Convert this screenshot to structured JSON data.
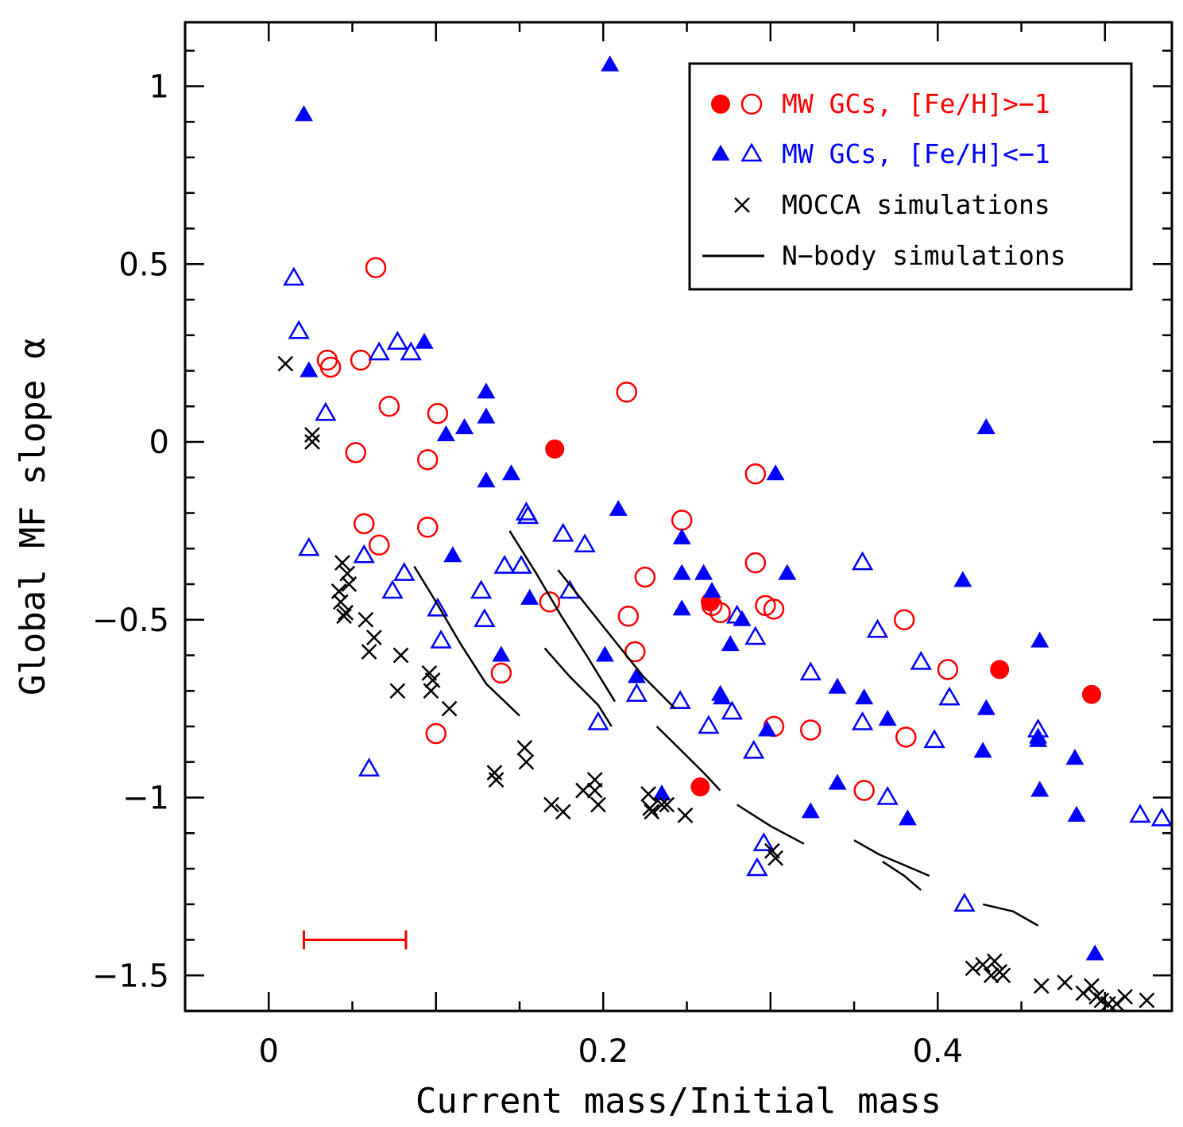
{
  "chart_data": {
    "type": "scatter",
    "xlabel": "Current mass/Initial mass",
    "ylabel": "Global MF slope α",
    "xlim": [
      -0.05,
      0.54
    ],
    "ylim": [
      -1.6,
      1.18
    ],
    "xticks": [
      0,
      0.2,
      0.4
    ],
    "xtick_labels": [
      "0",
      "0.2",
      "0.4"
    ],
    "yticks": [
      1,
      0.5,
      0,
      -0.5,
      -1,
      -1.5
    ],
    "ytick_labels": [
      "1",
      "0.5",
      "0",
      "−0.5",
      "−1",
      "−1.5"
    ],
    "legend_position": "top-right",
    "colors": {
      "red": "#ff0000",
      "blue": "#0000ff",
      "black": "#000000"
    },
    "legend": [
      {
        "label": "MW GCs, [Fe/H]>−1",
        "color": "#ff0000",
        "symbols": [
          "filled-circle",
          "open-circle"
        ]
      },
      {
        "label": "MW GCs, [Fe/H]<−1",
        "color": "#0000ff",
        "symbols": [
          "filled-triangle",
          "open-triangle"
        ]
      },
      {
        "label": "MOCCA simulations",
        "color": "#000000",
        "symbols": [
          "cross"
        ]
      },
      {
        "label": "N−body simulations",
        "color": "#000000",
        "symbols": [
          "line"
        ]
      }
    ],
    "series": [
      {
        "name": "MW GCs, [Fe/H]>−1",
        "marker": "filled-circle",
        "color": "#ff0000",
        "x": [
          0.171,
          0.264,
          0.258,
          0.437,
          0.492
        ],
        "y": [
          -0.02,
          -0.45,
          -0.97,
          -0.64,
          -0.71
        ]
      },
      {
        "name": "MW GCs, [Fe/H]>−1",
        "marker": "open-circle",
        "color": "#ff0000",
        "x": [
          0.064,
          0.035,
          0.037,
          0.055,
          0.072,
          0.101,
          0.095,
          0.052,
          0.057,
          0.066,
          0.095,
          0.1,
          0.139,
          0.168,
          0.214,
          0.215,
          0.219,
          0.225,
          0.247,
          0.265,
          0.27,
          0.291,
          0.291,
          0.297,
          0.302,
          0.302,
          0.324,
          0.356,
          0.38,
          0.381,
          0.406
        ],
        "y": [
          0.49,
          0.23,
          0.21,
          0.23,
          0.1,
          0.08,
          -0.05,
          -0.03,
          -0.23,
          -0.29,
          -0.24,
          -0.82,
          -0.65,
          -0.45,
          0.14,
          -0.49,
          -0.59,
          -0.38,
          -0.22,
          -0.46,
          -0.48,
          -0.09,
          -0.34,
          -0.46,
          -0.47,
          -0.8,
          -0.81,
          -0.98,
          -0.5,
          -0.83,
          -0.64
        ]
      },
      {
        "name": "MW GCs, [Fe/H]<−1",
        "marker": "filled-triangle",
        "color": "#0000ff",
        "x": [
          0.021,
          0.204,
          0.024,
          0.093,
          0.13,
          0.13,
          0.117,
          0.106,
          0.145,
          0.13,
          0.11,
          0.139,
          0.156,
          0.209,
          0.201,
          0.22,
          0.247,
          0.247,
          0.26,
          0.247,
          0.265,
          0.27,
          0.271,
          0.276,
          0.283,
          0.298,
          0.303,
          0.31,
          0.324,
          0.34,
          0.34,
          0.356,
          0.37,
          0.382,
          0.415,
          0.429,
          0.427,
          0.429,
          0.461,
          0.46,
          0.461,
          0.482,
          0.483,
          0.494,
          0.235,
          0.46
        ],
        "y": [
          0.92,
          1.06,
          0.2,
          0.28,
          0.14,
          0.07,
          0.04,
          0.02,
          -0.09,
          -0.11,
          -0.32,
          -0.6,
          -0.44,
          -0.19,
          -0.6,
          -0.66,
          -0.27,
          -0.37,
          -0.37,
          -0.47,
          -0.42,
          -0.71,
          -0.72,
          -0.57,
          -0.5,
          -0.81,
          -0.09,
          -0.37,
          -1.04,
          -0.69,
          -0.96,
          -0.72,
          -0.78,
          -1.06,
          -0.39,
          -0.75,
          -0.87,
          0.04,
          -0.56,
          -0.84,
          -0.98,
          -0.89,
          -1.05,
          -1.44,
          -0.99,
          -0.83
        ]
      },
      {
        "name": "MW GCs, [Fe/H]<−1",
        "marker": "open-triangle",
        "color": "#0000ff",
        "x": [
          0.015,
          0.018,
          0.034,
          0.024,
          0.066,
          0.077,
          0.085,
          0.057,
          0.081,
          0.074,
          0.06,
          0.101,
          0.103,
          0.127,
          0.129,
          0.141,
          0.154,
          0.155,
          0.151,
          0.176,
          0.18,
          0.189,
          0.197,
          0.22,
          0.246,
          0.263,
          0.277,
          0.28,
          0.291,
          0.29,
          0.296,
          0.292,
          0.324,
          0.355,
          0.355,
          0.364,
          0.37,
          0.39,
          0.398,
          0.407,
          0.416,
          0.46,
          0.521,
          0.534
        ],
        "y": [
          0.46,
          0.31,
          0.08,
          -0.3,
          0.25,
          0.28,
          0.25,
          -0.32,
          -0.37,
          -0.42,
          -0.92,
          -0.47,
          -0.56,
          -0.42,
          -0.5,
          -0.35,
          -0.2,
          -0.21,
          -0.35,
          -0.26,
          -0.42,
          -0.29,
          -0.79,
          -0.71,
          -0.73,
          -0.8,
          -0.76,
          -0.49,
          -0.55,
          -0.87,
          -1.13,
          -1.2,
          -0.65,
          -0.34,
          -0.79,
          -0.53,
          -1.0,
          -0.62,
          -0.84,
          -0.72,
          -1.3,
          -0.81,
          -1.05,
          -1.06
        ]
      },
      {
        "name": "MOCCA simulations",
        "marker": "cross",
        "color": "#000000",
        "x": [
          0.01,
          0.026,
          0.026,
          0.044,
          0.047,
          0.042,
          0.048,
          0.043,
          0.046,
          0.045,
          0.058,
          0.063,
          0.06,
          0.079,
          0.077,
          0.096,
          0.098,
          0.097,
          0.108,
          0.135,
          0.136,
          0.153,
          0.154,
          0.169,
          0.176,
          0.188,
          0.195,
          0.195,
          0.197,
          0.227,
          0.228,
          0.229,
          0.235,
          0.238,
          0.249,
          0.301,
          0.303,
          0.421,
          0.427,
          0.432,
          0.434,
          0.437,
          0.439,
          0.462,
          0.476,
          0.487,
          0.492,
          0.495,
          0.498,
          0.502,
          0.507,
          0.512,
          0.525
        ],
        "y": [
          0.22,
          0.02,
          0.0,
          -0.34,
          -0.37,
          -0.42,
          -0.4,
          -0.45,
          -0.48,
          -0.49,
          -0.5,
          -0.55,
          -0.59,
          -0.6,
          -0.7,
          -0.65,
          -0.67,
          -0.7,
          -0.75,
          -0.93,
          -0.95,
          -0.86,
          -0.9,
          -1.02,
          -1.04,
          -0.98,
          -0.95,
          -0.98,
          -1.02,
          -0.99,
          -1.03,
          -1.04,
          -1.02,
          -1.02,
          -1.05,
          -1.15,
          -1.17,
          -1.48,
          -1.47,
          -1.5,
          -1.46,
          -1.49,
          -1.5,
          -1.53,
          -1.52,
          -1.55,
          -1.53,
          -1.56,
          -1.57,
          -1.58,
          -1.58,
          -1.56,
          -1.57
        ]
      },
      {
        "name": "N−body simulations",
        "marker": "line",
        "color": "#000000",
        "lines": [
          {
            "x": [
              0.087,
              0.1,
              0.115,
              0.13,
              0.15
            ],
            "y": [
              -0.35,
              -0.45,
              -0.57,
              -0.68,
              -0.77
            ]
          },
          {
            "x": [
              0.144,
              0.16,
              0.175,
              0.19,
              0.207
            ],
            "y": [
              -0.25,
              -0.37,
              -0.49,
              -0.6,
              -0.73
            ]
          },
          {
            "x": [
              0.165,
              0.18,
              0.197,
              0.205
            ],
            "y": [
              -0.58,
              -0.66,
              -0.74,
              -0.8
            ]
          },
          {
            "x": [
              0.173,
              0.19,
              0.207,
              0.224,
              0.243
            ],
            "y": [
              -0.36,
              -0.46,
              -0.56,
              -0.66,
              -0.75
            ]
          },
          {
            "x": [
              0.232,
              0.245,
              0.26,
              0.27
            ],
            "y": [
              -0.8,
              -0.86,
              -0.93,
              -0.98
            ]
          },
          {
            "x": [
              0.28,
              0.3,
              0.32
            ],
            "y": [
              -1.02,
              -1.08,
              -1.13
            ]
          },
          {
            "x": [
              0.35,
              0.365,
              0.38,
              0.395
            ],
            "y": [
              -1.12,
              -1.16,
              -1.19,
              -1.22
            ]
          },
          {
            "x": [
              0.367,
              0.38,
              0.39
            ],
            "y": [
              -1.18,
              -1.22,
              -1.26
            ]
          },
          {
            "x": [
              0.427,
              0.445,
              0.46
            ],
            "y": [
              -1.3,
              -1.32,
              -1.36
            ]
          }
        ]
      }
    ],
    "error_bar": {
      "x_min": 0.021,
      "x_max": 0.082,
      "y": -1.4,
      "color": "#ff0000"
    }
  }
}
